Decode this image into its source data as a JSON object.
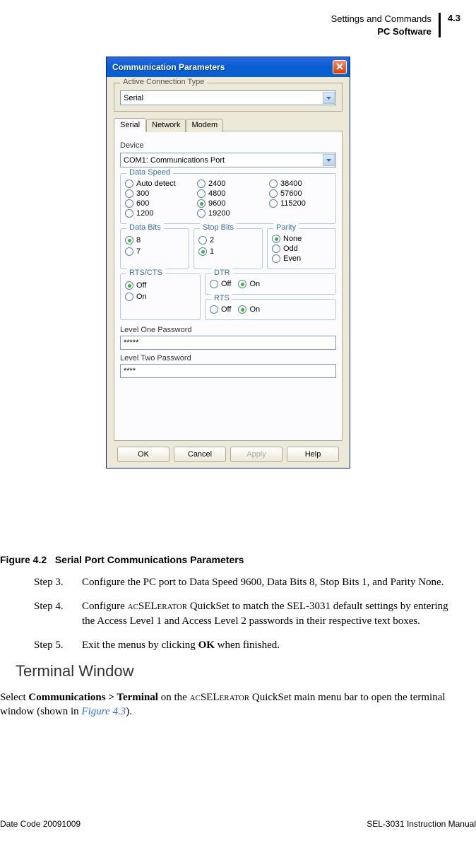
{
  "header": {
    "line1": "Settings and Commands",
    "line2": "PC Software",
    "pagenum": "4.3"
  },
  "dialog": {
    "title": "Communication Parameters",
    "active_conn_label": "Active Connection Type",
    "active_conn_value": "Serial",
    "tabs": [
      "Serial",
      "Network",
      "Modem"
    ],
    "device_label": "Device",
    "device_value": "COM1: Communications Port",
    "data_speed_label": "Data Speed",
    "data_speed_cols": [
      [
        "Auto detect",
        "300",
        "600",
        "1200"
      ],
      [
        "2400",
        "4800",
        "9600",
        "19200"
      ],
      [
        "38400",
        "57600",
        "115200"
      ]
    ],
    "data_speed_selected": "9600",
    "data_bits_label": "Data Bits",
    "data_bits_opts": [
      "8",
      "7"
    ],
    "data_bits_selected": "8",
    "stop_bits_label": "Stop Bits",
    "stop_bits_opts": [
      "2",
      "1"
    ],
    "stop_bits_selected": "1",
    "parity_label": "Parity",
    "parity_opts": [
      "None",
      "Odd",
      "Even"
    ],
    "parity_selected": "None",
    "rtscts_label": "RTS/CTS",
    "rtscts_opts": [
      "Off",
      "On"
    ],
    "rtscts_selected": "Off",
    "dtr_label": "DTR",
    "dtr_opts": [
      "Off",
      "On"
    ],
    "dtr_selected": "On",
    "rts_label": "RTS",
    "rts_opts": [
      "Off",
      "On"
    ],
    "rts_selected": "On",
    "pwd1_label": "Level One Password",
    "pwd1_value": "*****",
    "pwd2_label": "Level Two Password",
    "pwd2_value": "****",
    "buttons": {
      "ok": "OK",
      "cancel": "Cancel",
      "apply": "Apply",
      "help": "Help"
    }
  },
  "figure": {
    "caption_num": "Figure 4.2",
    "caption_text": "Serial Port Communications Parameters"
  },
  "steps": [
    {
      "label": "Step 3.",
      "text": "Configure the PC port to Data Speed 9600, Data Bits 8, Stop Bits 1, and Parity None."
    },
    {
      "label": "Step 4.",
      "text": "Configure ACSELERATOR QuickSet to match the SEL-3031 default settings by entering the Access Level 1 and Access Level 2 passwords in their respective text boxes."
    },
    {
      "label": "Step 5.",
      "text": "Exit the menus by clicking OK when finished."
    }
  ],
  "section": {
    "heading": "Terminal Window",
    "body_pre": "Select ",
    "body_bold": "Communications > Terminal",
    "body_mid": " on the ACSELERATOR QuickSet main menu bar to open the terminal window (shown in ",
    "body_ref": "Figure 4.3",
    "body_post": ")."
  },
  "footer": {
    "left": "Date Code 20091009",
    "right": "SEL-3031 Instruction Manual"
  }
}
